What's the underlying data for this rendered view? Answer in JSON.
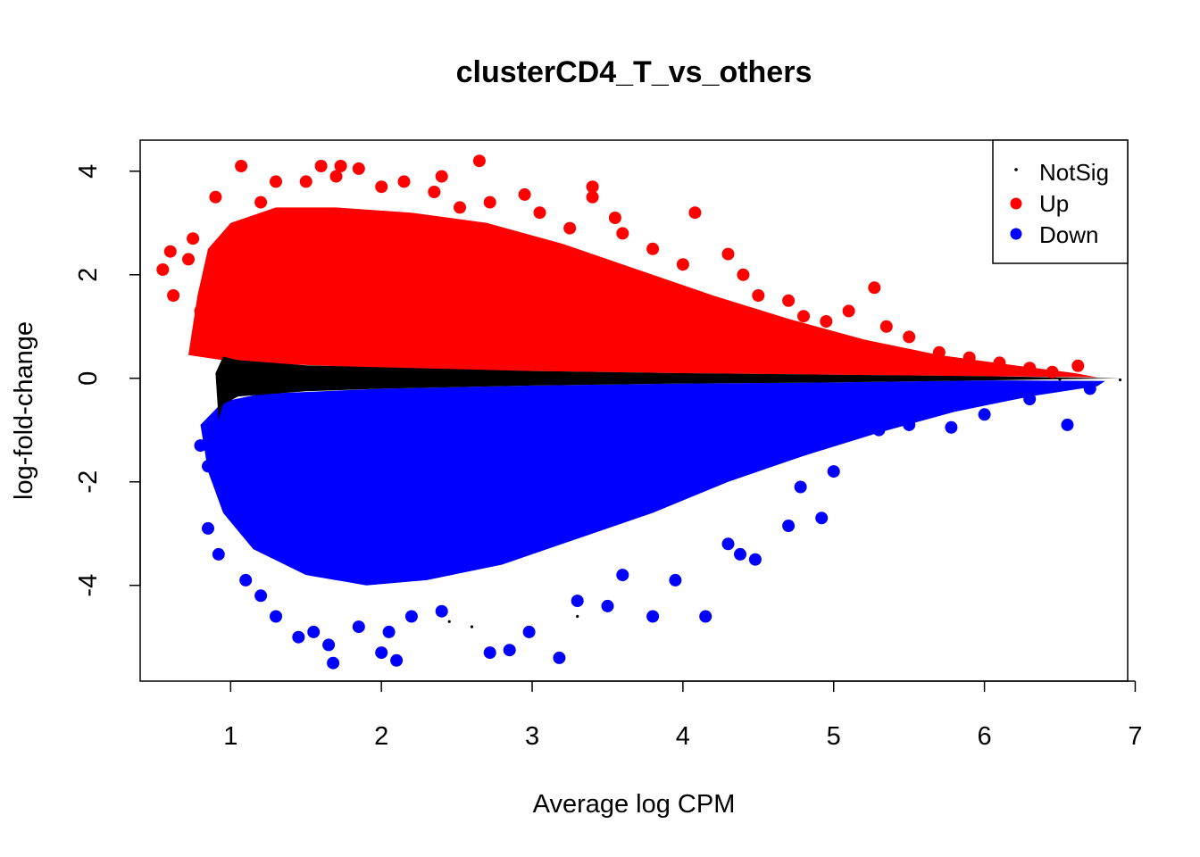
{
  "chart_data": {
    "type": "scatter",
    "title": "clusterCD4_T_vs_others",
    "xlabel": "Average log CPM",
    "ylabel": "log-fold-change",
    "xlim": [
      0.4,
      6.95
    ],
    "ylim": [
      -5.85,
      4.6
    ],
    "x_ticks": [
      1,
      2,
      3,
      4,
      5,
      6,
      7
    ],
    "y_ticks": [
      -4,
      -2,
      0,
      2,
      4
    ],
    "grid": false,
    "legend_position": "top-right",
    "series": [
      {
        "name": "NotSig",
        "color": "#000000",
        "marker": "dot",
        "values": [
          [
            0.98,
            0.04
          ],
          [
            1.05,
            -0.12
          ],
          [
            1.1,
            0.3
          ],
          [
            1.2,
            -0.3
          ],
          [
            1.35,
            0.1
          ],
          [
            1.5,
            -0.05
          ],
          [
            1.7,
            0.12
          ],
          [
            2.0,
            -0.1
          ],
          [
            2.4,
            0.06
          ],
          [
            2.8,
            -0.05
          ],
          [
            3.2,
            0.04
          ],
          [
            3.6,
            -0.03
          ],
          [
            4.0,
            0.03
          ],
          [
            4.5,
            -0.02
          ],
          [
            5.0,
            0.02
          ],
          [
            5.5,
            -0.02
          ],
          [
            6.0,
            0.01
          ],
          [
            6.5,
            -0.02
          ],
          [
            6.9,
            -0.03
          ],
          [
            2.45,
            -4.7
          ],
          [
            2.6,
            -4.8
          ],
          [
            3.3,
            -4.6
          ]
        ]
      },
      {
        "name": "Up",
        "color": "#ff0000",
        "marker": "filled-circle",
        "values": [
          [
            0.55,
            2.1
          ],
          [
            0.6,
            2.45
          ],
          [
            0.62,
            1.6
          ],
          [
            0.72,
            2.3
          ],
          [
            0.75,
            2.7
          ],
          [
            0.8,
            1.3
          ],
          [
            0.8,
            0.75
          ],
          [
            0.9,
            3.5
          ],
          [
            0.95,
            2.6
          ],
          [
            1.07,
            4.1
          ],
          [
            1.2,
            3.4
          ],
          [
            1.3,
            3.8
          ],
          [
            1.5,
            3.8
          ],
          [
            1.6,
            4.1
          ],
          [
            1.7,
            3.9
          ],
          [
            1.73,
            4.1
          ],
          [
            1.85,
            4.05
          ],
          [
            2.0,
            3.7
          ],
          [
            2.15,
            3.8
          ],
          [
            2.35,
            3.6
          ],
          [
            2.4,
            3.9
          ],
          [
            2.52,
            3.3
          ],
          [
            2.65,
            4.2
          ],
          [
            2.72,
            3.4
          ],
          [
            2.95,
            3.55
          ],
          [
            3.05,
            3.2
          ],
          [
            3.25,
            2.9
          ],
          [
            3.4,
            3.5
          ],
          [
            3.4,
            3.7
          ],
          [
            3.55,
            3.1
          ],
          [
            3.6,
            2.8
          ],
          [
            3.8,
            2.5
          ],
          [
            4.0,
            2.2
          ],
          [
            4.08,
            3.2
          ],
          [
            4.3,
            2.4
          ],
          [
            4.4,
            2.0
          ],
          [
            4.5,
            1.6
          ],
          [
            4.7,
            1.5
          ],
          [
            4.8,
            1.2
          ],
          [
            4.95,
            1.1
          ],
          [
            5.1,
            1.3
          ],
          [
            5.27,
            1.75
          ],
          [
            5.35,
            1.0
          ],
          [
            5.5,
            0.8
          ],
          [
            5.7,
            0.5
          ],
          [
            5.9,
            0.4
          ],
          [
            6.1,
            0.3
          ],
          [
            6.3,
            0.2
          ],
          [
            6.45,
            0.12
          ],
          [
            6.62,
            0.24
          ],
          [
            1.0,
            1.5
          ],
          [
            1.3,
            1.2
          ],
          [
            1.6,
            1.8
          ],
          [
            1.9,
            2.2
          ],
          [
            2.2,
            1.4
          ],
          [
            2.5,
            2.5
          ],
          [
            2.8,
            1.2
          ],
          [
            3.1,
            1.6
          ],
          [
            3.4,
            1.0
          ],
          [
            3.7,
            1.3
          ],
          [
            4.0,
            0.9
          ],
          [
            4.2,
            0.7
          ],
          [
            4.6,
            0.6
          ]
        ]
      },
      {
        "name": "Down",
        "color": "#0000ff",
        "marker": "filled-circle",
        "values": [
          [
            0.8,
            -1.3
          ],
          [
            0.85,
            -1.7
          ],
          [
            0.85,
            -2.9
          ],
          [
            0.92,
            -3.4
          ],
          [
            1.0,
            -2.5
          ],
          [
            1.1,
            -3.9
          ],
          [
            1.2,
            -4.2
          ],
          [
            1.3,
            -4.6
          ],
          [
            1.45,
            -5.0
          ],
          [
            1.55,
            -4.9
          ],
          [
            1.65,
            -5.15
          ],
          [
            1.68,
            -5.5
          ],
          [
            1.85,
            -4.8
          ],
          [
            2.0,
            -5.3
          ],
          [
            2.05,
            -4.9
          ],
          [
            2.1,
            -5.45
          ],
          [
            2.2,
            -4.6
          ],
          [
            2.4,
            -4.5
          ],
          [
            2.72,
            -5.3
          ],
          [
            2.85,
            -5.25
          ],
          [
            2.98,
            -4.9
          ],
          [
            3.18,
            -5.4
          ],
          [
            3.3,
            -4.3
          ],
          [
            3.5,
            -4.4
          ],
          [
            3.6,
            -3.8
          ],
          [
            3.8,
            -4.6
          ],
          [
            3.95,
            -3.9
          ],
          [
            4.15,
            -4.6
          ],
          [
            4.3,
            -3.2
          ],
          [
            4.38,
            -3.4
          ],
          [
            4.48,
            -3.5
          ],
          [
            4.7,
            -2.85
          ],
          [
            4.78,
            -2.1
          ],
          [
            4.92,
            -2.7
          ],
          [
            5.0,
            -1.8
          ],
          [
            5.3,
            -1.0
          ],
          [
            5.5,
            -0.9
          ],
          [
            5.78,
            -0.95
          ],
          [
            6.0,
            -0.7
          ],
          [
            6.3,
            -0.4
          ],
          [
            6.55,
            -0.9
          ],
          [
            6.7,
            -0.2
          ],
          [
            1.2,
            -1.5
          ],
          [
            1.5,
            -2.2
          ],
          [
            1.8,
            -1.2
          ],
          [
            2.1,
            -2.8
          ],
          [
            2.4,
            -1.6
          ],
          [
            2.7,
            -2.1
          ],
          [
            3.0,
            -1.3
          ],
          [
            3.3,
            -2.4
          ],
          [
            3.6,
            -1.4
          ],
          [
            3.9,
            -1.9
          ],
          [
            4.2,
            -1.1
          ],
          [
            4.5,
            -1.4
          ],
          [
            4.8,
            -0.8
          ]
        ]
      }
    ]
  }
}
